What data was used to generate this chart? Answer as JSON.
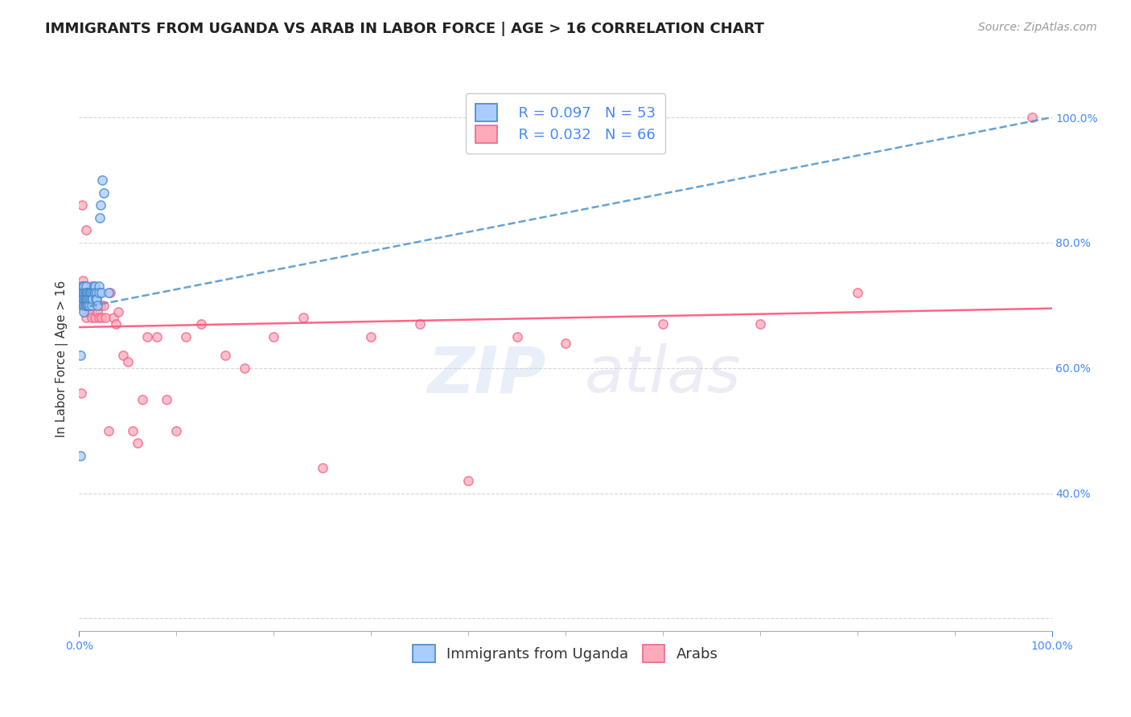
{
  "title": "IMMIGRANTS FROM UGANDA VS ARAB IN LABOR FORCE | AGE > 16 CORRELATION CHART",
  "source": "Source: ZipAtlas.com",
  "ylabel": "In Labor Force | Age > 16",
  "xlim": [
    0.0,
    1.0
  ],
  "ylim": [
    0.18,
    1.05
  ],
  "background_color": "#ffffff",
  "grid_color": "#cccccc",
  "uganda_color": "#aaccff",
  "arab_color": "#ffaabb",
  "uganda_line_color": "#5599cc",
  "arab_line_color": "#ff5577",
  "legend_R_uganda": "R = 0.097",
  "legend_N_uganda": "N = 53",
  "legend_R_arab": "R = 0.032",
  "legend_N_arab": "N = 66",
  "title_fontsize": 13,
  "axis_label_fontsize": 11,
  "tick_fontsize": 10,
  "legend_fontsize": 13,
  "source_fontsize": 10,
  "scatter_size": 65,
  "scatter_alpha": 0.75,
  "scatter_linewidth": 1.2,
  "scatter_edgecolor_uganda": "#4488cc",
  "scatter_edgecolor_arab": "#ee6688",
  "uganda_scatter_x": [
    0.001,
    0.001,
    0.002,
    0.003,
    0.003,
    0.004,
    0.004,
    0.004,
    0.005,
    0.005,
    0.005,
    0.005,
    0.005,
    0.006,
    0.006,
    0.006,
    0.006,
    0.007,
    0.007,
    0.007,
    0.007,
    0.008,
    0.008,
    0.008,
    0.009,
    0.009,
    0.009,
    0.01,
    0.01,
    0.01,
    0.011,
    0.011,
    0.012,
    0.013,
    0.013,
    0.014,
    0.014,
    0.015,
    0.015,
    0.016,
    0.016,
    0.017,
    0.018,
    0.018,
    0.019,
    0.02,
    0.02,
    0.021,
    0.022,
    0.023,
    0.024,
    0.025,
    0.03
  ],
  "uganda_scatter_y": [
    0.46,
    0.62,
    0.72,
    0.73,
    0.72,
    0.73,
    0.72,
    0.71,
    0.73,
    0.72,
    0.71,
    0.7,
    0.69,
    0.72,
    0.71,
    0.71,
    0.7,
    0.73,
    0.72,
    0.71,
    0.7,
    0.72,
    0.71,
    0.7,
    0.72,
    0.71,
    0.7,
    0.72,
    0.71,
    0.7,
    0.72,
    0.71,
    0.72,
    0.71,
    0.7,
    0.72,
    0.71,
    0.73,
    0.72,
    0.73,
    0.72,
    0.71,
    0.72,
    0.71,
    0.7,
    0.73,
    0.72,
    0.84,
    0.86,
    0.72,
    0.9,
    0.88,
    0.72
  ],
  "arab_scatter_x": [
    0.001,
    0.002,
    0.003,
    0.004,
    0.004,
    0.005,
    0.005,
    0.006,
    0.006,
    0.007,
    0.007,
    0.007,
    0.008,
    0.008,
    0.009,
    0.009,
    0.01,
    0.01,
    0.011,
    0.011,
    0.012,
    0.012,
    0.013,
    0.013,
    0.014,
    0.015,
    0.015,
    0.016,
    0.017,
    0.018,
    0.019,
    0.02,
    0.022,
    0.023,
    0.025,
    0.027,
    0.03,
    0.032,
    0.035,
    0.038,
    0.04,
    0.045,
    0.05,
    0.055,
    0.06,
    0.065,
    0.07,
    0.08,
    0.09,
    0.1,
    0.11,
    0.125,
    0.15,
    0.17,
    0.2,
    0.23,
    0.25,
    0.3,
    0.35,
    0.4,
    0.45,
    0.5,
    0.6,
    0.7,
    0.8,
    0.98
  ],
  "arab_scatter_y": [
    0.7,
    0.56,
    0.86,
    0.74,
    0.7,
    0.72,
    0.7,
    0.73,
    0.71,
    0.69,
    0.68,
    0.82,
    0.72,
    0.7,
    0.72,
    0.7,
    0.71,
    0.69,
    0.72,
    0.7,
    0.73,
    0.71,
    0.69,
    0.68,
    0.72,
    0.71,
    0.7,
    0.68,
    0.72,
    0.71,
    0.69,
    0.68,
    0.7,
    0.68,
    0.7,
    0.68,
    0.5,
    0.72,
    0.68,
    0.67,
    0.69,
    0.62,
    0.61,
    0.5,
    0.48,
    0.55,
    0.65,
    0.65,
    0.55,
    0.5,
    0.65,
    0.67,
    0.62,
    0.6,
    0.65,
    0.68,
    0.44,
    0.65,
    0.67,
    0.42,
    0.65,
    0.64,
    0.67,
    0.67,
    0.72,
    1.0
  ],
  "uganda_trend_x": [
    0.0,
    1.0
  ],
  "uganda_trend_y": [
    0.695,
    1.0
  ],
  "arab_trend_x": [
    0.0,
    1.0
  ],
  "arab_trend_y": [
    0.665,
    0.695
  ],
  "right_yticks": [
    0.4,
    0.6,
    0.8,
    1.0
  ],
  "right_yticklabels": [
    "40.0%",
    "60.0%",
    "80.0%",
    "100.0%"
  ],
  "x_minor_ticks": [
    0.1,
    0.2,
    0.3,
    0.4,
    0.5,
    0.6,
    0.7,
    0.8,
    0.9
  ]
}
